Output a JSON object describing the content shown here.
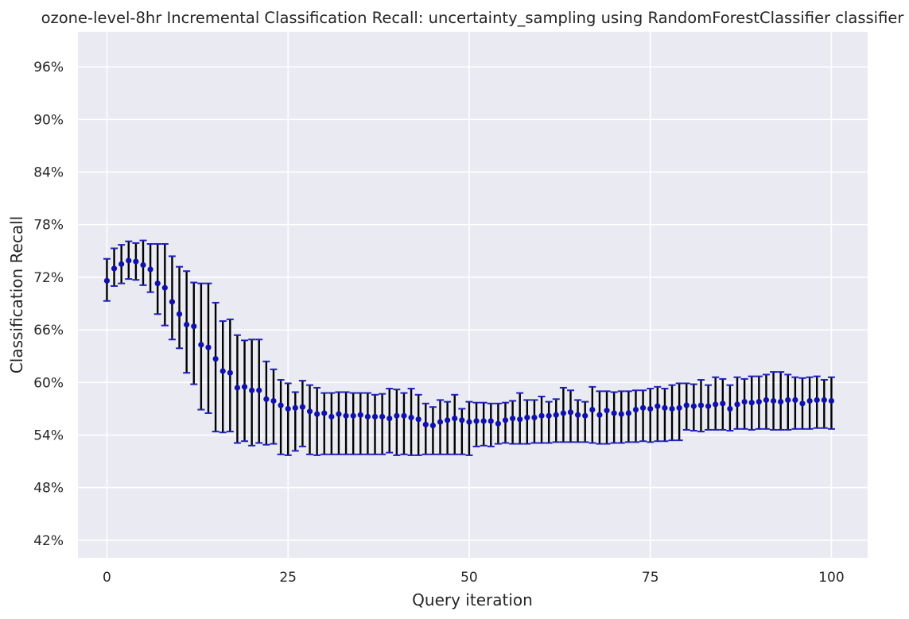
{
  "chart_data": {
    "type": "scatter",
    "title": "ozone-level-8hr Incremental Classification Recall: uncertainty_sampling using RandomForestClassifier classifier",
    "xlabel": "Query iteration",
    "ylabel": "Classification Recall",
    "xlim": [
      -4,
      105
    ],
    "ylim": [
      0.4,
      1.0
    ],
    "xticks": [
      0,
      25,
      50,
      75,
      100
    ],
    "xtick_labels": [
      "0",
      "25",
      "50",
      "75",
      "100"
    ],
    "yticks": [
      0.42,
      0.48,
      0.54,
      0.6,
      0.66,
      0.72,
      0.78,
      0.84,
      0.9,
      0.96
    ],
    "ytick_labels": [
      "42%",
      "48%",
      "54%",
      "60%",
      "66%",
      "72%",
      "78%",
      "84%",
      "90%",
      "96%"
    ],
    "grid": true,
    "legend": "none",
    "colors": {
      "background": "#eaeaf2",
      "grid": "#ffffff",
      "point": "#1010b0",
      "errorbar": "#000000",
      "cap": "#1f1fbf"
    },
    "series": [
      {
        "x": [
          0,
          1,
          2,
          3,
          4,
          5,
          6,
          7,
          8,
          9,
          10,
          11,
          12,
          13,
          14,
          15,
          16,
          17,
          18,
          19,
          20,
          21,
          22,
          23,
          24,
          25,
          26,
          27,
          28,
          29,
          30,
          31,
          32,
          33,
          34,
          35,
          36,
          37,
          38,
          39,
          40,
          41,
          42,
          43,
          44,
          45,
          46,
          47,
          48,
          49,
          50,
          51,
          52,
          53,
          54,
          55,
          56,
          57,
          58,
          59,
          60,
          61,
          62,
          63,
          64,
          65,
          66,
          67,
          68,
          69,
          70,
          71,
          72,
          73,
          74,
          75,
          76,
          77,
          78,
          79,
          80,
          81,
          82,
          83,
          84,
          85,
          86,
          87,
          88,
          89,
          90,
          91,
          92,
          93,
          94,
          95,
          96,
          97,
          98,
          99,
          100
        ],
        "y": [
          0.716,
          0.73,
          0.735,
          0.739,
          0.738,
          0.734,
          0.729,
          0.713,
          0.708,
          0.692,
          0.678,
          0.666,
          0.664,
          0.643,
          0.64,
          0.627,
          0.613,
          0.611,
          0.594,
          0.595,
          0.591,
          0.591,
          0.581,
          0.579,
          0.574,
          0.57,
          0.571,
          0.572,
          0.567,
          0.564,
          0.565,
          0.561,
          0.564,
          0.562,
          0.562,
          0.563,
          0.561,
          0.561,
          0.561,
          0.559,
          0.562,
          0.562,
          0.56,
          0.558,
          0.552,
          0.551,
          0.555,
          0.557,
          0.559,
          0.557,
          0.555,
          0.556,
          0.556,
          0.556,
          0.553,
          0.557,
          0.559,
          0.558,
          0.56,
          0.56,
          0.562,
          0.562,
          0.563,
          0.565,
          0.566,
          0.563,
          0.562,
          0.569,
          0.563,
          0.568,
          0.565,
          0.564,
          0.565,
          0.569,
          0.571,
          0.57,
          0.573,
          0.571,
          0.57,
          0.571,
          0.574,
          0.573,
          0.574,
          0.573,
          0.575,
          0.576,
          0.57,
          0.575,
          0.578,
          0.577,
          0.578,
          0.58,
          0.579,
          0.578,
          0.58,
          0.58,
          0.576,
          0.579,
          0.58,
          0.58,
          0.579
        ],
        "y_lower": [
          0.693,
          0.71,
          0.713,
          0.718,
          0.717,
          0.711,
          0.703,
          0.678,
          0.665,
          0.649,
          0.639,
          0.611,
          0.598,
          0.569,
          0.565,
          0.544,
          0.543,
          0.544,
          0.531,
          0.533,
          0.528,
          0.531,
          0.529,
          0.53,
          0.518,
          0.517,
          0.522,
          0.527,
          0.518,
          0.517,
          0.518,
          0.518,
          0.518,
          0.518,
          0.518,
          0.518,
          0.518,
          0.518,
          0.518,
          0.52,
          0.517,
          0.518,
          0.517,
          0.517,
          0.518,
          0.518,
          0.518,
          0.518,
          0.518,
          0.518,
          0.517,
          0.527,
          0.528,
          0.527,
          0.53,
          0.531,
          0.53,
          0.53,
          0.53,
          0.531,
          0.531,
          0.531,
          0.532,
          0.532,
          0.532,
          0.532,
          0.532,
          0.531,
          0.53,
          0.53,
          0.531,
          0.531,
          0.532,
          0.532,
          0.533,
          0.532,
          0.533,
          0.533,
          0.534,
          0.534,
          0.546,
          0.545,
          0.544,
          0.546,
          0.546,
          0.546,
          0.545,
          0.547,
          0.547,
          0.546,
          0.547,
          0.547,
          0.546,
          0.546,
          0.546,
          0.547,
          0.547,
          0.547,
          0.548,
          0.548,
          0.547
        ],
        "y_upper": [
          0.741,
          0.753,
          0.757,
          0.761,
          0.759,
          0.762,
          0.758,
          0.758,
          0.758,
          0.744,
          0.732,
          0.727,
          0.714,
          0.713,
          0.713,
          0.691,
          0.67,
          0.672,
          0.654,
          0.648,
          0.649,
          0.649,
          0.624,
          0.615,
          0.603,
          0.599,
          0.589,
          0.602,
          0.597,
          0.594,
          0.588,
          0.588,
          0.589,
          0.589,
          0.588,
          0.588,
          0.588,
          0.586,
          0.587,
          0.593,
          0.592,
          0.588,
          0.593,
          0.586,
          0.576,
          0.572,
          0.58,
          0.578,
          0.586,
          0.57,
          0.578,
          0.577,
          0.577,
          0.576,
          0.576,
          0.577,
          0.579,
          0.588,
          0.58,
          0.58,
          0.584,
          0.578,
          0.581,
          0.594,
          0.591,
          0.58,
          0.578,
          0.595,
          0.59,
          0.59,
          0.589,
          0.59,
          0.59,
          0.591,
          0.591,
          0.593,
          0.595,
          0.593,
          0.597,
          0.599,
          0.599,
          0.598,
          0.603,
          0.597,
          0.606,
          0.604,
          0.597,
          0.606,
          0.604,
          0.607,
          0.607,
          0.609,
          0.612,
          0.612,
          0.609,
          0.606,
          0.605,
          0.606,
          0.607,
          0.603,
          0.606
        ]
      }
    ]
  }
}
